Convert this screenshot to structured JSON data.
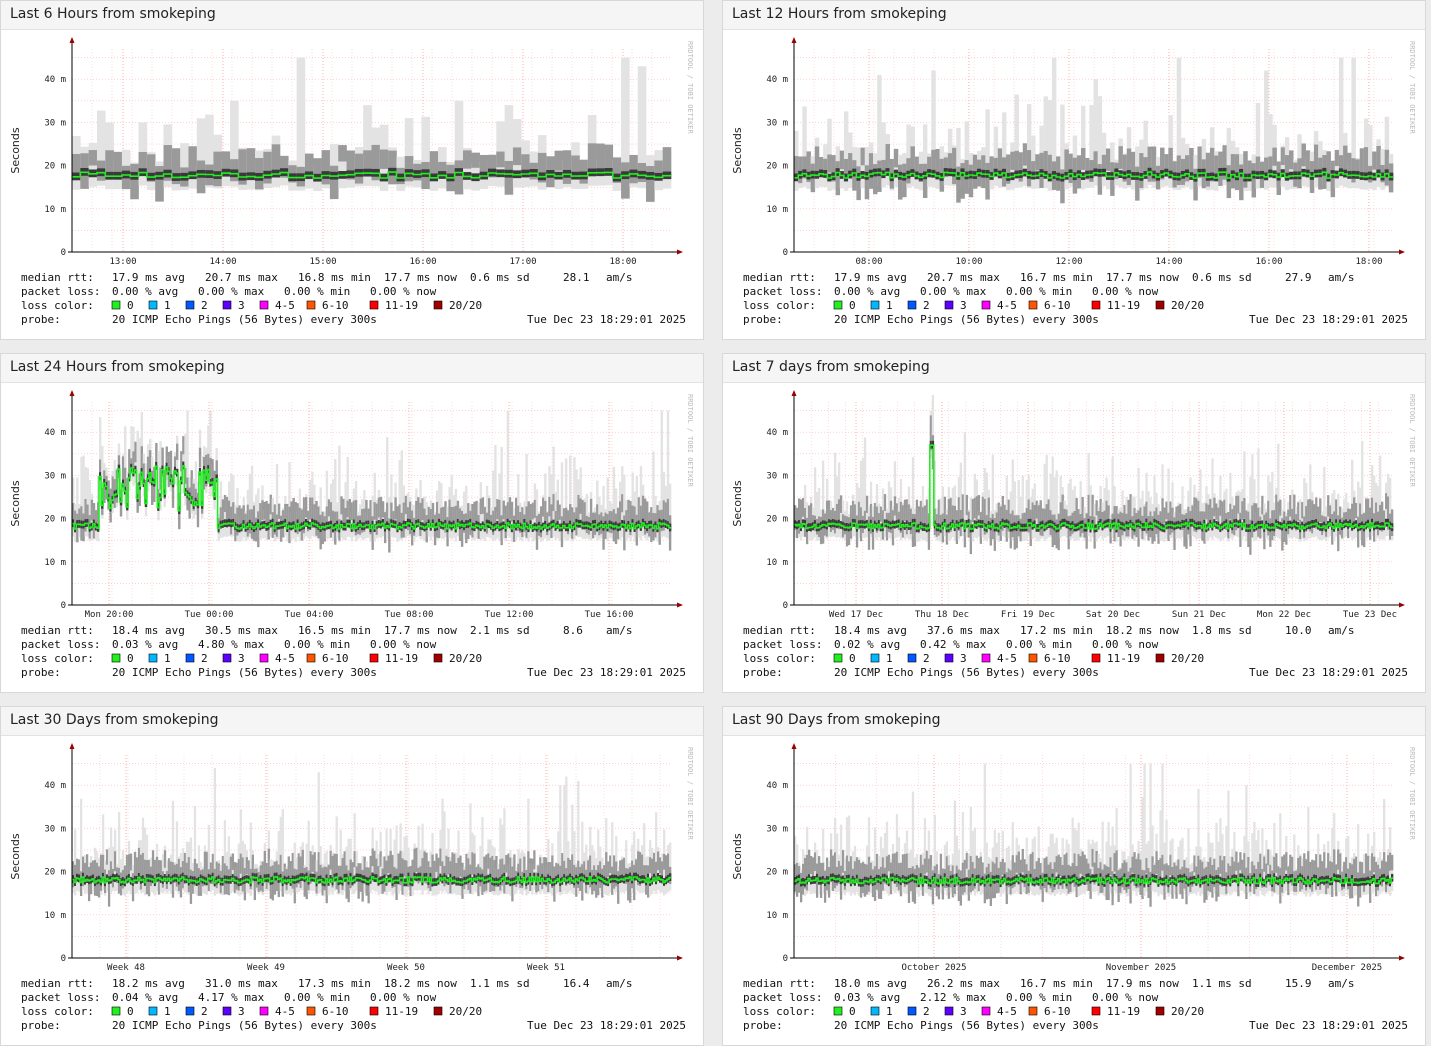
{
  "colors": {
    "median": "#22ee22",
    "grid": "#ffb5b5",
    "axis": "#990000",
    "loss": [
      "#22ee22",
      "#00b8ff",
      "#0059ff",
      "#5e00ff",
      "#ff00ff",
      "#ff5500",
      "#ff0000",
      "#a10000"
    ]
  },
  "panels": [
    {
      "title": "Last 6 Hours from smokeping",
      "ylabel": "Seconds",
      "brand": "RRDTOOL / TOBI OETIKER",
      "yticks": [
        "0",
        "10 m",
        "20 m",
        "30 m",
        "40 m"
      ],
      "xticks": [
        "13:00",
        "14:00",
        "15:00",
        "16:00",
        "17:00",
        "18:00"
      ],
      "stats": {
        "median_label": "median rtt:",
        "median_avg": "17.9 ms avg",
        "median_max": "20.7 ms max",
        "median_min": "16.8 ms min",
        "median_now": "17.7 ms now",
        "median_sd": "0.6 ms sd",
        "median_ams": "28.1",
        "median_ams_unit": "am/s",
        "loss_label": "packet loss:",
        "loss_avg": "0.00 % avg",
        "loss_max": "0.00 % max",
        "loss_min": "0.00 % min",
        "loss_now": "0.00 % now",
        "color_label": "loss color:",
        "probe_label": "probe:",
        "probe": "20 ICMP Echo Pings (56 Bytes) every 300s",
        "date": "Tue Dec 23 18:29:01 2025"
      },
      "loss_legend": [
        "0",
        "1",
        "2",
        "3",
        "4-5",
        "6-10",
        "11-19",
        "20/20"
      ],
      "chart_data": {
        "type": "area",
        "y_unit": "ms",
        "ylim": [
          0,
          47
        ],
        "points": 72,
        "median_avg": 17.9,
        "median_max": 20.7,
        "median_min": 16.8,
        "spikes": [
          [
            8,
            30
          ],
          [
            19,
            35
          ],
          [
            27,
            45
          ],
          [
            35,
            34
          ],
          [
            46,
            35
          ],
          [
            52,
            34
          ],
          [
            66,
            45
          ],
          [
            68,
            43
          ]
        ]
      }
    },
    {
      "title": "Last 12 Hours from smokeping",
      "ylabel": "Seconds",
      "brand": "RRDTOOL / TOBI OETIKER",
      "yticks": [
        "0",
        "10 m",
        "20 m",
        "30 m",
        "40 m"
      ],
      "xticks": [
        "08:00",
        "10:00",
        "12:00",
        "14:00",
        "16:00",
        "18:00"
      ],
      "stats": {
        "median_label": "median rtt:",
        "median_avg": "17.9 ms avg",
        "median_max": "20.7 ms max",
        "median_min": "16.7 ms min",
        "median_now": "17.7 ms now",
        "median_sd": "0.6 ms sd",
        "median_ams": "27.9",
        "median_ams_unit": "am/s",
        "loss_label": "packet loss:",
        "loss_avg": "0.00 % avg",
        "loss_max": "0.00 % max",
        "loss_min": "0.00 % min",
        "loss_now": "0.00 % now",
        "color_label": "loss color:",
        "probe_label": "probe:",
        "probe": "20 ICMP Echo Pings (56 Bytes) every 300s",
        "date": "Tue Dec 23 18:29:01 2025"
      },
      "loss_legend": [
        "0",
        "1",
        "2",
        "3",
        "4-5",
        "6-10",
        "11-19",
        "20/20"
      ],
      "chart_data": {
        "type": "area",
        "y_unit": "ms",
        "ylim": [
          0,
          47
        ],
        "points": 144,
        "median_avg": 17.9,
        "median_max": 20.7,
        "median_min": 16.7,
        "spikes": [
          [
            20,
            41
          ],
          [
            33,
            42
          ],
          [
            62,
            45
          ],
          [
            72,
            40
          ],
          [
            92,
            45
          ],
          [
            113,
            42
          ],
          [
            131,
            45
          ],
          [
            134,
            45
          ]
        ]
      }
    },
    {
      "title": "Last 24 Hours from smokeping",
      "ylabel": "Seconds",
      "brand": "RRDTOOL / TOBI OETIKER",
      "yticks": [
        "0",
        "10 m",
        "20 m",
        "30 m",
        "40 m"
      ],
      "xticks": [
        "Mon 20:00",
        "Tue 00:00",
        "Tue 04:00",
        "Tue 08:00",
        "Tue 12:00",
        "Tue 16:00"
      ],
      "stats": {
        "median_label": "median rtt:",
        "median_avg": "18.4 ms avg",
        "median_max": "30.5 ms max",
        "median_min": "16.5 ms min",
        "median_now": "17.7 ms now",
        "median_sd": "2.1 ms sd",
        "median_ams": "8.6",
        "median_ams_unit": "am/s",
        "loss_label": "packet loss:",
        "loss_avg": "0.03 % avg",
        "loss_max": "4.80 % max",
        "loss_min": "0.00 % min",
        "loss_now": "0.00 % now",
        "color_label": "loss color:",
        "probe_label": "probe:",
        "probe": "20 ICMP Echo Pings (56 Bytes) every 300s",
        "date": "Tue Dec 23 18:29:01 2025"
      },
      "loss_legend": [
        "0",
        "1",
        "2",
        "3",
        "4-5",
        "6-10",
        "11-19",
        "20/20"
      ],
      "chart_data": {
        "type": "area",
        "y_unit": "ms",
        "ylim": [
          0,
          47
        ],
        "points": 288,
        "median_avg": 18.4,
        "median_max": 30.5,
        "median_min": 16.5,
        "spikes": [
          [
            55,
            45
          ],
          [
            66,
            45
          ],
          [
            209,
            45
          ],
          [
            283,
            45
          ],
          [
            286,
            45
          ]
        ]
      }
    },
    {
      "title": "Last 7 days from smokeping",
      "ylabel": "Seconds",
      "brand": "RRDTOOL / TOBI OETIKER",
      "yticks": [
        "0",
        "10 m",
        "20 m",
        "30 m",
        "40 m"
      ],
      "xticks": [
        "Wed 17 Dec",
        "Thu 18 Dec",
        "Fri 19 Dec",
        "Sat 20 Dec",
        "Sun 21 Dec",
        "Mon 22 Dec",
        "Tue 23 Dec"
      ],
      "stats": {
        "median_label": "median rtt:",
        "median_avg": "18.4 ms avg",
        "median_max": "37.6 ms max",
        "median_min": "17.2 ms min",
        "median_now": "18.2 ms now",
        "median_sd": "1.8 ms sd",
        "median_ams": "10.0",
        "median_ams_unit": "am/s",
        "loss_label": "packet loss:",
        "loss_avg": "0.02 % avg",
        "loss_max": "0.42 % max",
        "loss_min": "0.00 % min",
        "loss_now": "0.00 % now",
        "color_label": "loss color:",
        "probe_label": "probe:",
        "probe": "20 ICMP Echo Pings (56 Bytes) every 300s",
        "date": "Tue Dec 23 18:29:01 2025"
      },
      "loss_legend": [
        "0",
        "1",
        "2",
        "3",
        "4-5",
        "6-10",
        "11-19",
        "20/20"
      ],
      "chart_data": {
        "type": "area",
        "y_unit": "ms",
        "ylim": [
          0,
          47
        ],
        "points": 300,
        "median_avg": 18.4,
        "median_max": 37.6,
        "median_min": 17.2,
        "spikes": [
          [
            68,
            45
          ],
          [
            85,
            40
          ],
          [
            284,
            38
          ]
        ]
      }
    },
    {
      "title": "Last 30 Days from smokeping",
      "ylabel": "Seconds",
      "brand": "RRDTOOL / TOBI OETIKER",
      "yticks": [
        "0",
        "10 m",
        "20 m",
        "30 m",
        "40 m"
      ],
      "xticks": [
        "Week 48",
        "Week 49",
        "Week 50",
        "Week 51"
      ],
      "stats": {
        "median_label": "median rtt:",
        "median_avg": "18.2 ms avg",
        "median_max": "31.0 ms max",
        "median_min": "17.3 ms min",
        "median_now": "18.2 ms now",
        "median_sd": "1.1 ms sd",
        "median_ams": "16.4",
        "median_ams_unit": "am/s",
        "loss_label": "packet loss:",
        "loss_avg": "0.04 % avg",
        "loss_max": "4.17 % max",
        "loss_min": "0.00 % min",
        "loss_now": "0.00 % now",
        "color_label": "loss color:",
        "probe_label": "probe:",
        "probe": "20 ICMP Echo Pings (56 Bytes) every 300s",
        "date": "Tue Dec 23 18:29:01 2025"
      },
      "loss_legend": [
        "0",
        "1",
        "2",
        "3",
        "4-5",
        "6-10",
        "11-19",
        "20/20"
      ],
      "chart_data": {
        "type": "area",
        "y_unit": "ms",
        "ylim": [
          0,
          47
        ],
        "points": 300,
        "median_avg": 18.2,
        "median_max": 31.0,
        "median_min": 17.3,
        "spikes": [
          [
            71,
            44
          ],
          [
            123,
            43
          ],
          [
            244,
            40
          ],
          [
            246,
            40
          ],
          [
            247,
            42
          ],
          [
            253,
            41
          ]
        ]
      }
    },
    {
      "title": "Last 90 Days from smokeping",
      "ylabel": "Seconds",
      "brand": "RRDTOOL / TOBI OETIKER",
      "yticks": [
        "0",
        "10 m",
        "20 m",
        "30 m",
        "40 m"
      ],
      "xticks": [
        "October 2025",
        "November 2025",
        "December 2025"
      ],
      "stats": {
        "median_label": "median rtt:",
        "median_avg": "18.0 ms avg",
        "median_max": "26.2 ms max",
        "median_min": "16.7 ms min",
        "median_now": "17.9 ms now",
        "median_sd": "1.1 ms sd",
        "median_ams": "15.9",
        "median_ams_unit": "am/s",
        "loss_label": "packet loss:",
        "loss_avg": "0.03 % avg",
        "loss_max": "2.12 % max",
        "loss_min": "0.00 % min",
        "loss_now": "0.00 % now",
        "color_label": "loss color:",
        "probe_label": "probe:",
        "probe": "20 ICMP Echo Pings (56 Bytes) every 300s",
        "date": "Tue Dec 23 18:29:01 2025"
      },
      "loss_legend": [
        "0",
        "1",
        "2",
        "3",
        "4-5",
        "6-10",
        "11-19",
        "20/20"
      ],
      "chart_data": {
        "type": "area",
        "y_unit": "ms",
        "ylim": [
          0,
          47
        ],
        "points": 300,
        "median_avg": 18.0,
        "median_max": 26.2,
        "median_min": 16.7,
        "spikes": [
          [
            95,
            45
          ],
          [
            168,
            45
          ],
          [
            175,
            45
          ],
          [
            178,
            45
          ],
          [
            184,
            45
          ],
          [
            226,
            40
          ]
        ]
      }
    }
  ]
}
